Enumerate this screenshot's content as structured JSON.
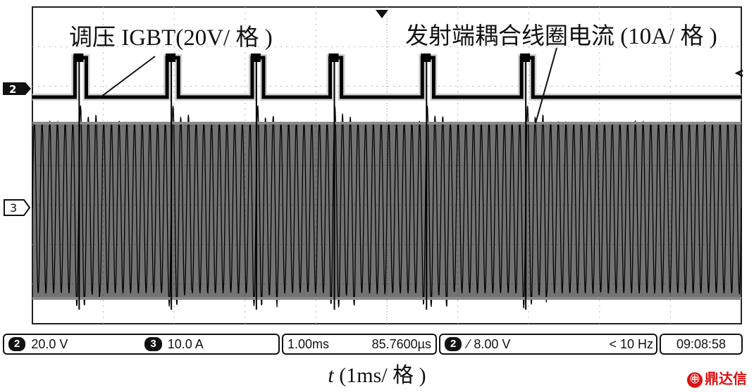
{
  "chart_data": {
    "type": "line",
    "title": "",
    "annotations": [
      "调压 IGBT(20V/ 格 )",
      "发射端耦合线圈电流 (10A/ 格 )"
    ],
    "xlabel_prefix": "t",
    "xlabel_suffix": " (1ms/ 格 )",
    "x_divisions": 10,
    "y_divisions": 8,
    "series": [
      {
        "name": "调压 IGBT",
        "channel": "2",
        "scale": "20V/格",
        "pulse_times_ms": [
          0.6,
          1.9,
          3.1,
          4.2,
          5.5,
          6.9
        ],
        "pulse_width_ms": 0.16
      },
      {
        "name": "发射端耦合线圈电流",
        "channel": "3",
        "scale": "10A/格",
        "burst_period_ms": 1.3
      }
    ],
    "colors": {
      "trace": "#000000",
      "grid": "#b8b8b8",
      "background": "#ffffff"
    }
  },
  "markers": {
    "ch2": "2",
    "ch3": "3"
  },
  "status_bar": {
    "ch2_badge": "2",
    "ch2_scale": "20.0 V",
    "ch3_badge": "3",
    "ch3_scale": "10.0 A",
    "timebase": "1.00ms",
    "delay": "85.7600µs",
    "trig_badge": "2",
    "trig_slope": "⁄",
    "trig_level": "8.00 V",
    "trig_freq": "< 10 Hz",
    "clock": "09:08:58"
  },
  "logo": {
    "mark": "㊥",
    "text": "鼎达信"
  }
}
